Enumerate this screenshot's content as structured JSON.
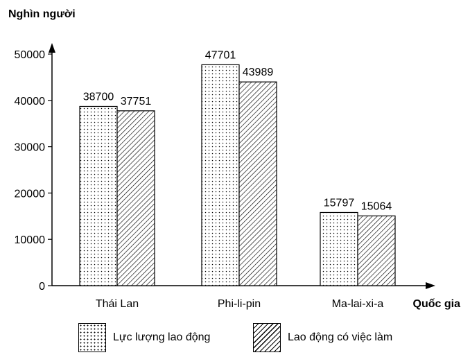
{
  "chart_data": {
    "type": "bar",
    "ylabel": "Nghìn người",
    "xlabel": "Quốc gia",
    "categories": [
      "Thái Lan",
      "Phi-li-pin",
      "Ma-lai-xi-a"
    ],
    "yticks": [
      0,
      10000,
      20000,
      30000,
      40000,
      50000
    ],
    "ylim": [
      0,
      55000
    ],
    "grid": false,
    "legend_position": "bottom",
    "series": [
      {
        "name": "Lực lượng lao động",
        "pattern": "dots",
        "values": [
          38700,
          47701,
          15797
        ]
      },
      {
        "name": "Lao động có việc làm",
        "pattern": "hatch",
        "values": [
          37751,
          43989,
          15064
        ]
      }
    ]
  }
}
